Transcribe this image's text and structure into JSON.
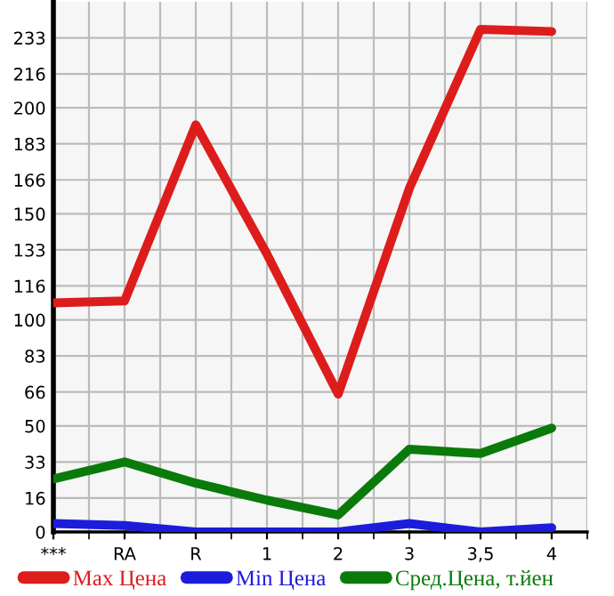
{
  "chart_data": {
    "type": "line",
    "categories": [
      "***",
      "RA",
      "R",
      "1",
      "2",
      "3",
      "3,5",
      "4"
    ],
    "series": [
      {
        "name": "Max Цена",
        "color": "#dd1c1c",
        "values": [
          108,
          109,
          192,
          131,
          65,
          162,
          237,
          236
        ]
      },
      {
        "name": "Min Цена",
        "color": "#1c1cdd",
        "values": [
          4,
          3,
          0,
          0,
          0,
          4,
          0,
          2
        ]
      },
      {
        "name": "Сред.Цена, т.йен",
        "color": "#0a7a0a",
        "values": [
          25,
          33,
          23,
          15,
          8,
          39,
          37,
          49
        ]
      }
    ],
    "ylim": [
      0,
      250
    ],
    "yticks": [
      0,
      16,
      33,
      50,
      66,
      83,
      100,
      116,
      133,
      150,
      166,
      183,
      200,
      216,
      233
    ],
    "grid": true,
    "legend": "bottom",
    "marker": "none",
    "line_style": "solid"
  }
}
